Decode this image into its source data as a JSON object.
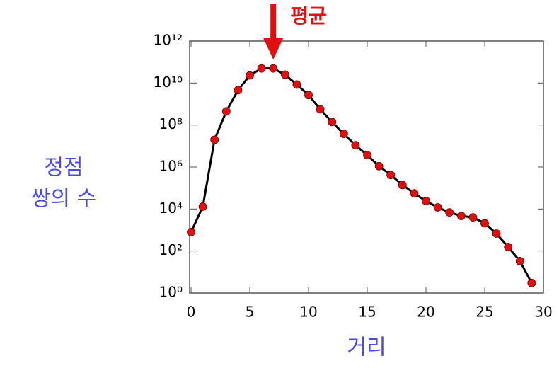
{
  "chart_data": {
    "type": "line",
    "scale": "log",
    "ylabel": [
      "정점",
      "쌍의 수"
    ],
    "xlabel": "거리",
    "annotation": {
      "text": "평균",
      "x": 7,
      "color": "#e01010"
    },
    "x": [
      0,
      1,
      2,
      3,
      4,
      5,
      6,
      7,
      8,
      9,
      10,
      11,
      12,
      13,
      14,
      15,
      16,
      17,
      18,
      19,
      20,
      21,
      22,
      23,
      24,
      25,
      26,
      27,
      28,
      29
    ],
    "series": [
      {
        "color": "#e01010",
        "line_color": "#000000",
        "values": [
          800,
          13000,
          20000000,
          450000000,
          4600000000,
          23000000000,
          50000000000,
          50000000000,
          25000000000,
          8500000000,
          2700000000,
          560000000,
          140000000,
          38000000,
          11000000,
          3700000,
          1100000,
          420000,
          140000,
          56000,
          24000,
          12000,
          6900,
          4700,
          4000,
          2100,
          680,
          155,
          33,
          3
        ]
      }
    ],
    "xlim": [
      0,
      30
    ],
    "xticks": [
      0,
      5,
      10,
      15,
      20,
      25,
      30
    ],
    "ylim": [
      1,
      1000000000000
    ],
    "yticks": [
      {
        "value": 1,
        "label": "10⁰"
      },
      {
        "value": 100,
        "label": "10²"
      },
      {
        "value": 10000,
        "label": "10⁴"
      },
      {
        "value": 1000000,
        "label": "10⁶"
      },
      {
        "value": 100000000,
        "label": "10⁸"
      },
      {
        "value": 10000000000,
        "label": "10¹⁰"
      },
      {
        "value": 1000000000000,
        "label": "10¹²"
      }
    ]
  }
}
